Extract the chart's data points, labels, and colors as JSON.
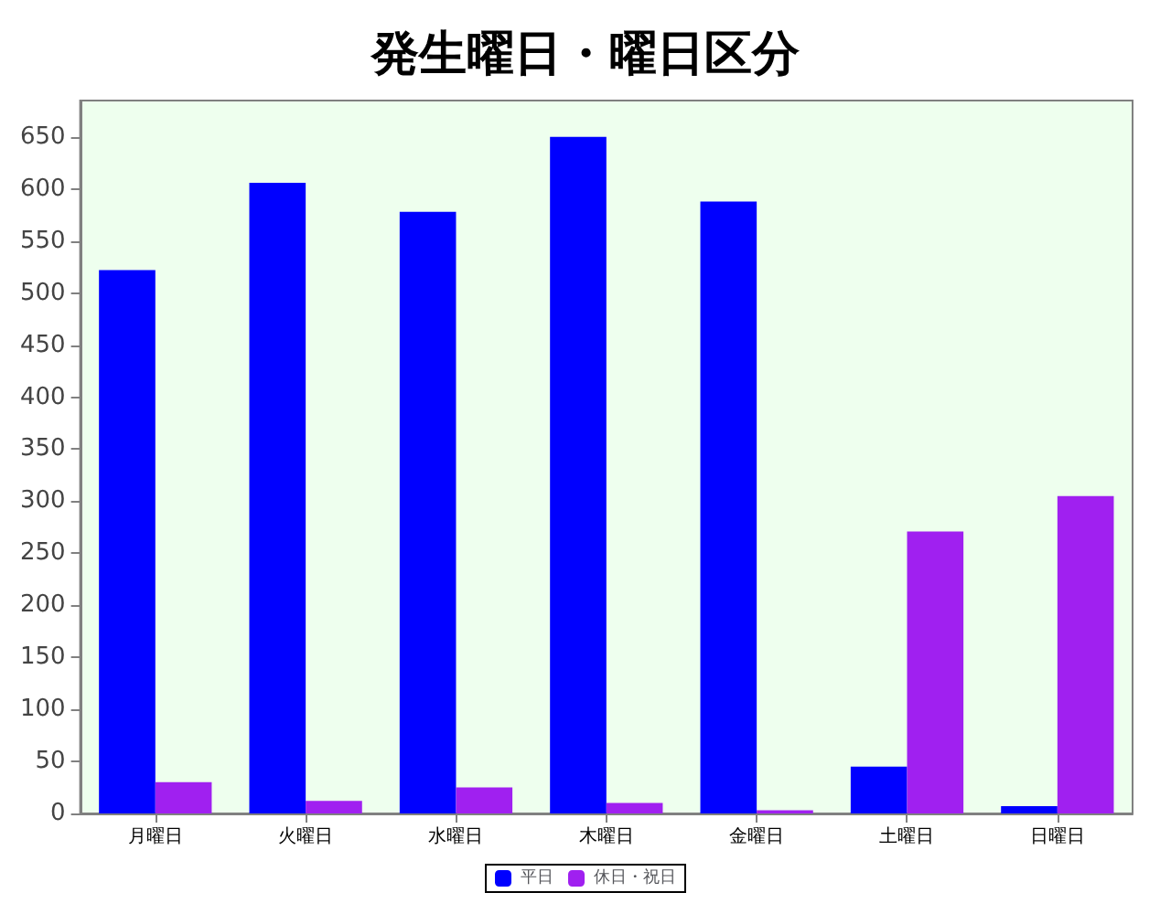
{
  "chart_data": {
    "type": "bar",
    "title": "発生曜日・曜日区分",
    "categories": [
      "月曜日",
      "火曜日",
      "水曜日",
      "木曜日",
      "金曜日",
      "土曜日",
      "日曜日"
    ],
    "series": [
      {
        "name": "平日",
        "color": "#0000ff",
        "values": [
          522,
          606,
          578,
          650,
          588,
          45,
          7
        ]
      },
      {
        "name": "休日・祝日",
        "color": "#a020f0",
        "values": [
          30,
          12,
          25,
          10,
          3,
          271,
          305
        ]
      }
    ],
    "ylim": [
      0,
      685
    ],
    "yticks": [
      0,
      50,
      100,
      150,
      200,
      250,
      300,
      350,
      400,
      450,
      500,
      550,
      600,
      650
    ],
    "grid": false,
    "legend": "bottom"
  }
}
